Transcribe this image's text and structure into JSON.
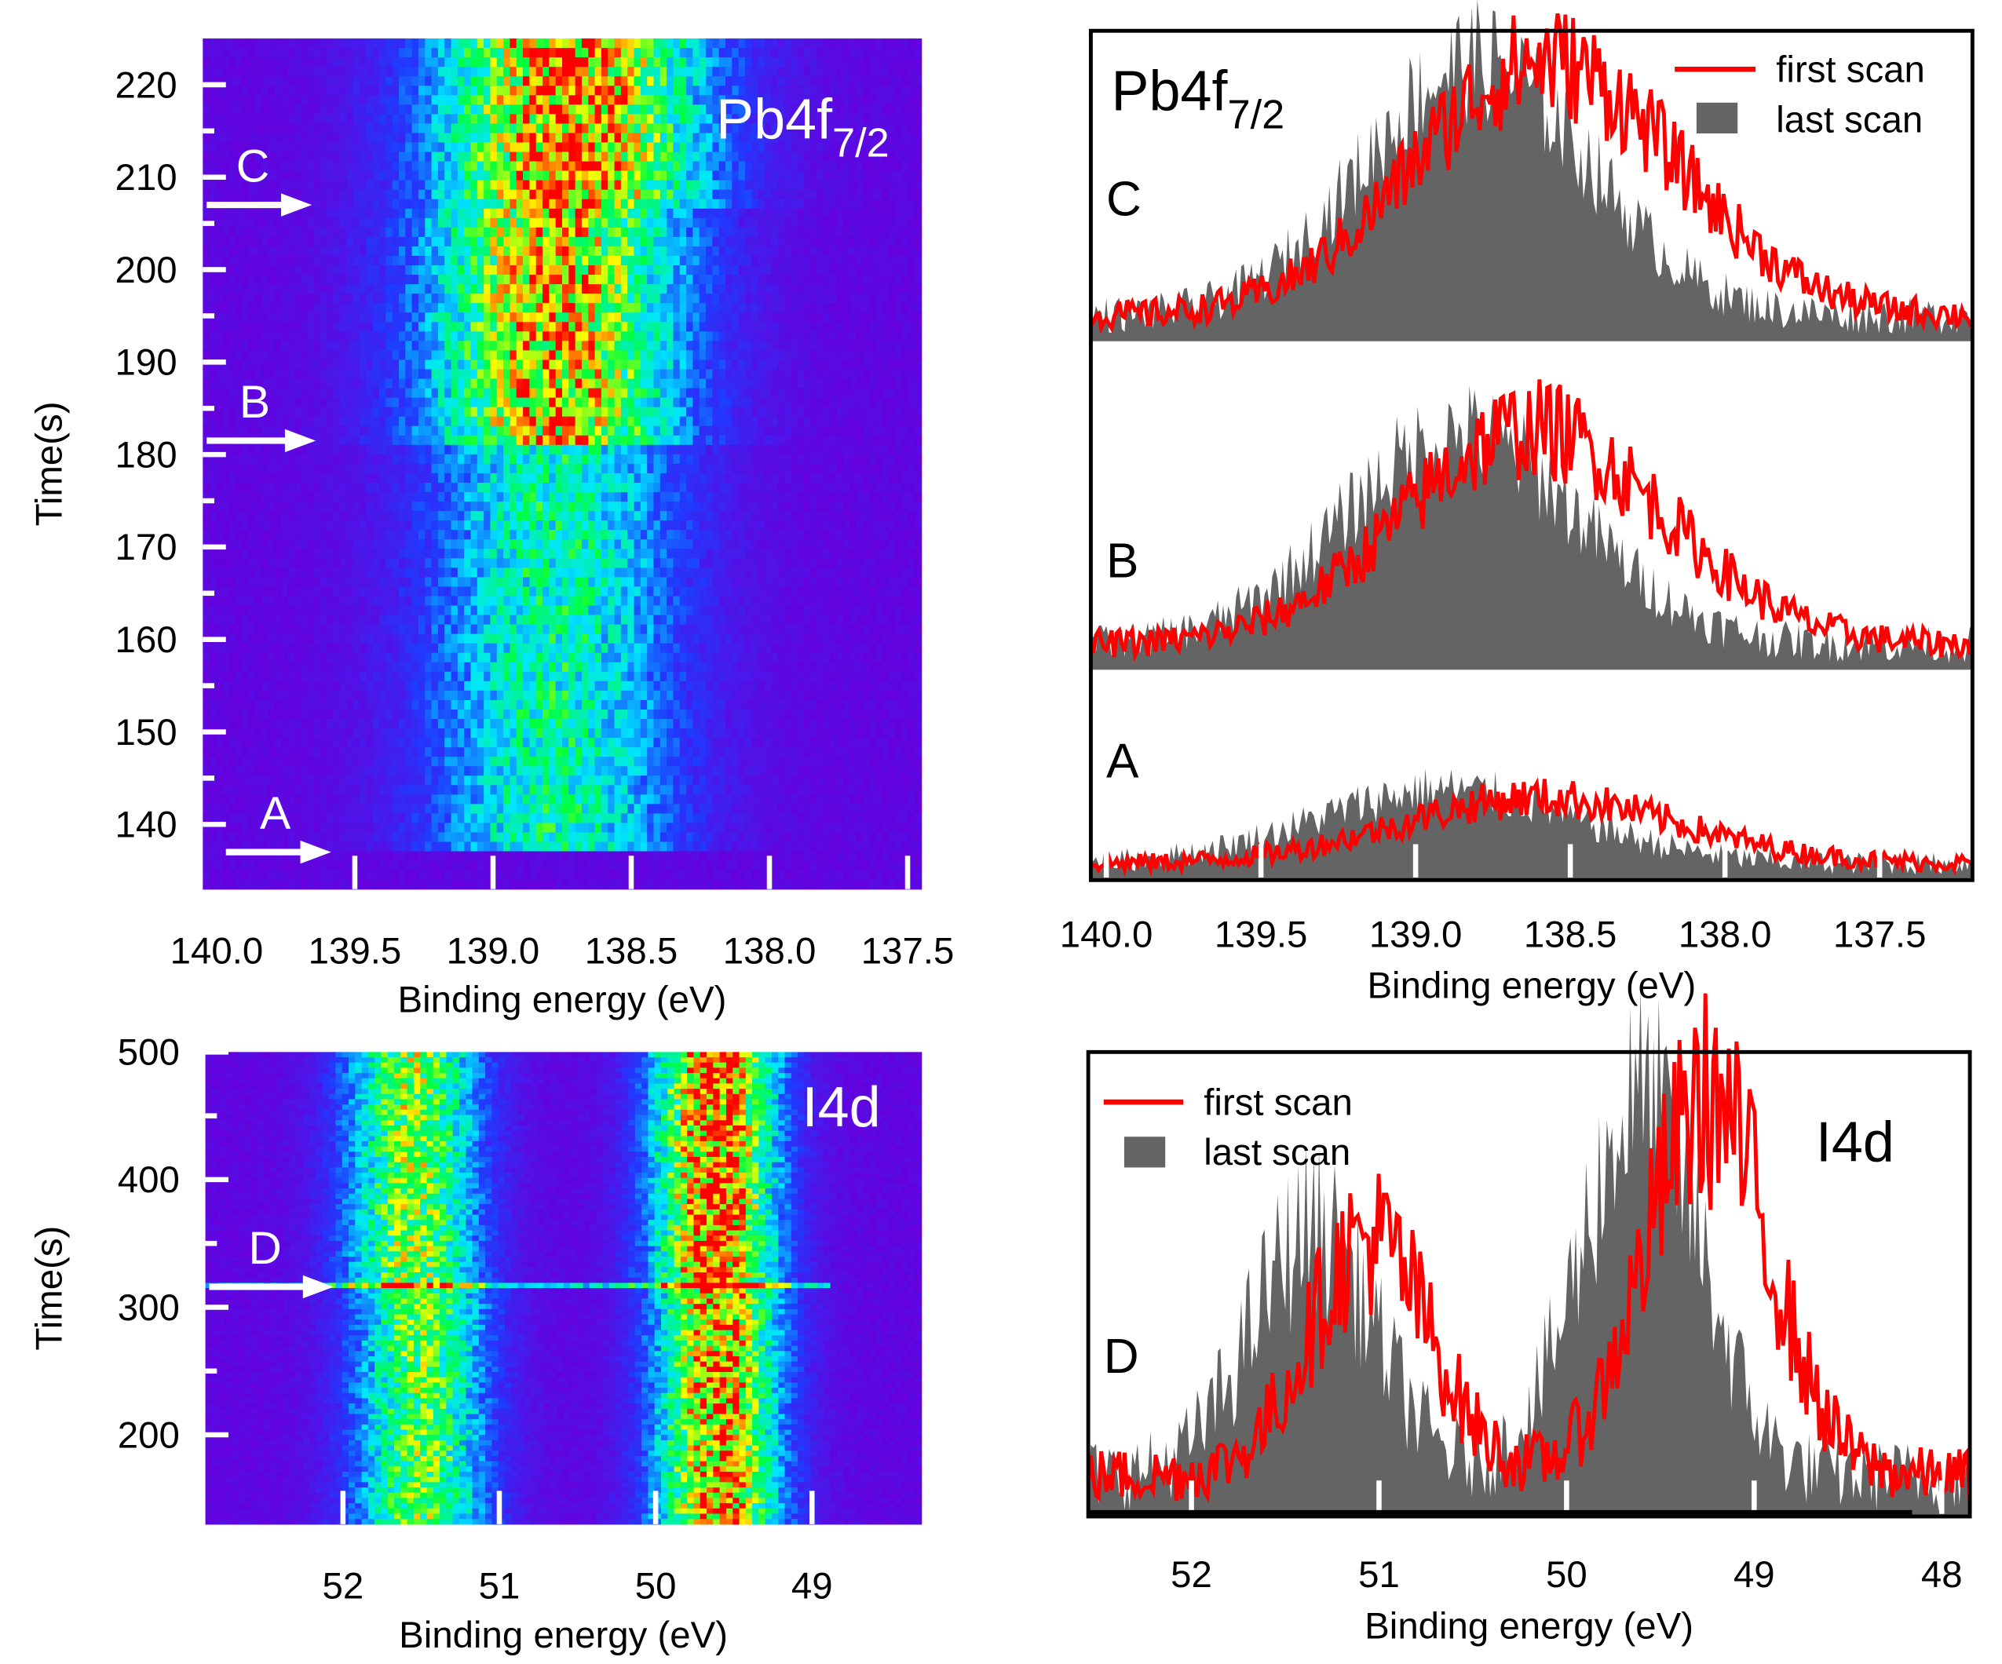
{
  "chart_data": [
    {
      "id": "pb-map",
      "type": "heatmap",
      "xlabel": "Binding energy (eV)",
      "ylabel": "Time(s)",
      "xlim": [
        140.05,
        137.45
      ],
      "ylim": [
        133,
        225
      ],
      "xticks": [
        "140.0",
        "139.5",
        "139.0",
        "138.5",
        "138.0",
        "137.5"
      ],
      "xtick_values": [
        140.0,
        139.5,
        139.0,
        138.5,
        138.0,
        137.5
      ],
      "yticks": [
        "140",
        "150",
        "160",
        "170",
        "180",
        "190",
        "200",
        "210",
        "220"
      ],
      "ytick_values": [
        140,
        150,
        160,
        170,
        180,
        190,
        200,
        210,
        220
      ],
      "label": "Pb4f",
      "label_sub": "7/2",
      "segments": [
        {
          "t0": 133,
          "t1": 137.5,
          "center": 138.75,
          "width": 0.0,
          "amp": 0.0
        },
        {
          "t0": 137.5,
          "t1": 181.5,
          "center": 138.78,
          "width": 0.32,
          "amp": 0.48
        },
        {
          "t0": 181.5,
          "t1": 207,
          "center": 138.78,
          "width": 0.33,
          "amp": 0.8
        },
        {
          "t0": 207,
          "t1": 225,
          "center": 138.72,
          "width": 0.34,
          "amp": 0.88
        }
      ],
      "markers": [
        {
          "label": "C",
          "t": 207
        },
        {
          "label": "B",
          "t": 181.5
        },
        {
          "label": "A",
          "t": 137
        }
      ]
    },
    {
      "id": "pb-spectra",
      "type": "line",
      "xlabel": "Binding energy (eV)",
      "xlim": [
        140.05,
        137.2
      ],
      "xticks": [
        "140.0",
        "139.5",
        "139.0",
        "138.5",
        "138.0",
        "137.5"
      ],
      "xtick_values": [
        140.0,
        139.5,
        139.0,
        138.5,
        138.0,
        137.5
      ],
      "label": "Pb4f",
      "label_sub": "7/2",
      "legend": {
        "first": "first scan",
        "last": "last scan",
        "placement": "top-right"
      },
      "colors": {
        "first": "#ff0000",
        "last": "#646464"
      },
      "panels": [
        {
          "label": "C",
          "first": {
            "center": 138.58,
            "width": 0.42,
            "amp": 0.95
          },
          "last": {
            "center": 138.8,
            "width": 0.36,
            "amp": 0.95
          }
        },
        {
          "label": "B",
          "first": {
            "center": 138.62,
            "width": 0.42,
            "amp": 0.82
          },
          "last": {
            "center": 138.85,
            "width": 0.38,
            "amp": 0.8
          }
        },
        {
          "label": "A",
          "first": {
            "center": 138.6,
            "width": 0.45,
            "amp": 0.4
          },
          "last": {
            "center": 138.9,
            "width": 0.42,
            "amp": 0.45
          }
        }
      ]
    },
    {
      "id": "i4d-map",
      "type": "heatmap",
      "xlabel": "Binding energy (eV)",
      "ylabel": "Time(s)",
      "xlim": [
        52.88,
        48.3
      ],
      "ylim": [
        130,
        500
      ],
      "xticks": [
        "52",
        "51",
        "50",
        "49"
      ],
      "xtick_values": [
        52,
        51,
        50,
        49
      ],
      "yticks": [
        "200",
        "300",
        "400",
        "500"
      ],
      "ytick_values": [
        200,
        300,
        400,
        500
      ],
      "label": "I4d",
      "segments": [
        {
          "t0": 130,
          "t1": 316,
          "peaks": [
            {
              "center": 51.5,
              "width": 0.3,
              "amp": 0.62
            },
            {
              "center": 49.6,
              "width": 0.28,
              "amp": 0.85
            }
          ]
        },
        {
          "t0": 316,
          "t1": 500,
          "peaks": [
            {
              "center": 51.55,
              "width": 0.3,
              "amp": 0.66
            },
            {
              "center": 49.62,
              "width": 0.28,
              "amp": 0.92
            }
          ]
        }
      ],
      "markers": [
        {
          "label": "D",
          "t": 316
        }
      ]
    },
    {
      "id": "i4d-spectra",
      "type": "line",
      "xlabel": "Binding energy (eV)",
      "xlim": [
        52.55,
        47.85
      ],
      "xticks": [
        "52",
        "51",
        "50",
        "49",
        "48"
      ],
      "xtick_values": [
        52,
        51,
        50,
        49,
        48
      ],
      "label": "I4d",
      "legend": {
        "first": "first scan",
        "last": "last scan",
        "placement": "top-left"
      },
      "colors": {
        "first": "#ff0000",
        "last": "#646464"
      },
      "panels": [
        {
          "label": "D",
          "first": {
            "peaks": [
              {
                "center": 51.05,
                "width": 0.32,
                "amp": 0.58
              },
              {
                "center": 49.25,
                "width": 0.33,
                "amp": 0.92
              }
            ]
          },
          "last": {
            "peaks": [
              {
                "center": 51.35,
                "width": 0.33,
                "amp": 0.6
              },
              {
                "center": 49.6,
                "width": 0.32,
                "amp": 0.92
              }
            ]
          }
        }
      ]
    }
  ]
}
